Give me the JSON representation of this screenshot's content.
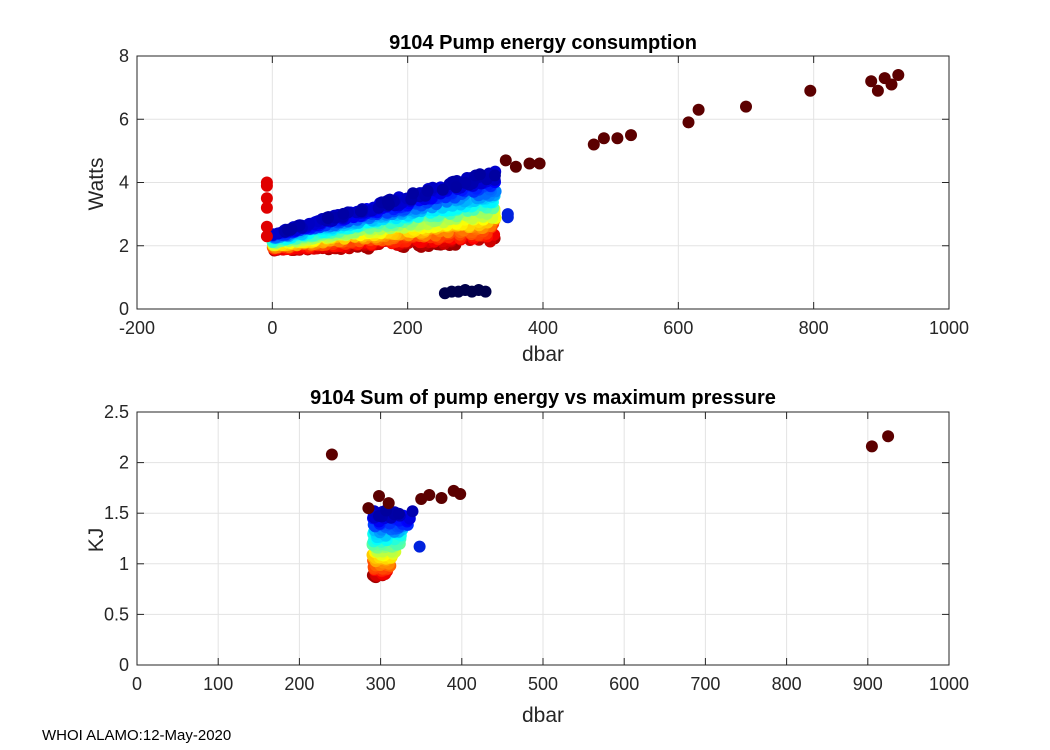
{
  "chart_data": [
    {
      "type": "scatter",
      "title": "9104 Pump energy consumption",
      "xlabel": "dbar",
      "ylabel": "Watts",
      "xlim": [
        -200,
        1000
      ],
      "ylim": [
        0,
        8
      ],
      "xticks": [
        "-200",
        "0",
        "200",
        "400",
        "600",
        "800",
        "1000"
      ],
      "yticks": [
        "0",
        "2",
        "4",
        "6",
        "8"
      ],
      "grid": true,
      "colormap": "jet (point color by profile order)",
      "series": [
        {
          "name": "profiles",
          "x_range": [
            0,
            330
          ],
          "y_at_x0": [
            1.8,
            2.4
          ],
          "y_at_x330": [
            2.0,
            4.4
          ],
          "note": "dense band rising from about 2 W at 0 dbar to about 4 W at 330 dbar"
        },
        {
          "name": "surface spike",
          "x": [
            -8,
            -8,
            -8,
            -8,
            -8,
            -8
          ],
          "y": [
            2.3,
            2.6,
            3.2,
            3.5,
            3.9,
            4.0
          ]
        },
        {
          "name": "low-power group",
          "x": [
            255,
            265,
            275,
            285,
            295,
            305,
            315
          ],
          "y": [
            0.5,
            0.55,
            0.55,
            0.6,
            0.55,
            0.6,
            0.55
          ]
        },
        {
          "name": "deep profiles",
          "x": [
            345,
            360,
            380,
            395,
            475,
            490,
            510,
            530,
            615,
            630,
            700,
            795,
            885,
            895,
            905,
            915,
            925
          ],
          "y": [
            4.7,
            4.5,
            4.6,
            4.6,
            5.2,
            5.4,
            5.4,
            5.5,
            5.9,
            6.3,
            6.4,
            6.9,
            7.2,
            6.9,
            7.3,
            7.1,
            7.4
          ]
        },
        {
          "name": "blue outliers",
          "x": [
            348,
            348
          ],
          "y": [
            2.9,
            3.0
          ]
        }
      ]
    },
    {
      "type": "scatter",
      "title": "9104 Sum of pump energy vs maximum pressure",
      "xlabel": "dbar",
      "ylabel": "KJ",
      "xlim": [
        0,
        1000
      ],
      "ylim": [
        0,
        2.5
      ],
      "xticks": [
        "0",
        "100",
        "200",
        "300",
        "400",
        "500",
        "600",
        "700",
        "800",
        "900",
        "1000"
      ],
      "yticks": [
        "0",
        "0.5",
        "1",
        "1.5",
        "2",
        "2.5"
      ],
      "grid": true,
      "colormap": "jet (point color by profile order)",
      "series": [
        {
          "name": "profiles",
          "x_range": [
            280,
            340
          ],
          "y_range": [
            0.8,
            1.55
          ],
          "note": "cluster of profiles near 300 dbar"
        },
        {
          "name": "high points",
          "x": [
            240,
            285,
            298,
            310,
            350,
            360,
            375,
            390,
            398,
            905,
            925
          ],
          "y": [
            2.08,
            1.55,
            1.67,
            1.6,
            1.64,
            1.68,
            1.65,
            1.72,
            1.69,
            2.16,
            2.26
          ]
        },
        {
          "name": "blue outlier",
          "x": [
            348
          ],
          "y": [
            1.17
          ]
        }
      ]
    }
  ],
  "footer": "WHOI ALAMO:12-May-2020"
}
